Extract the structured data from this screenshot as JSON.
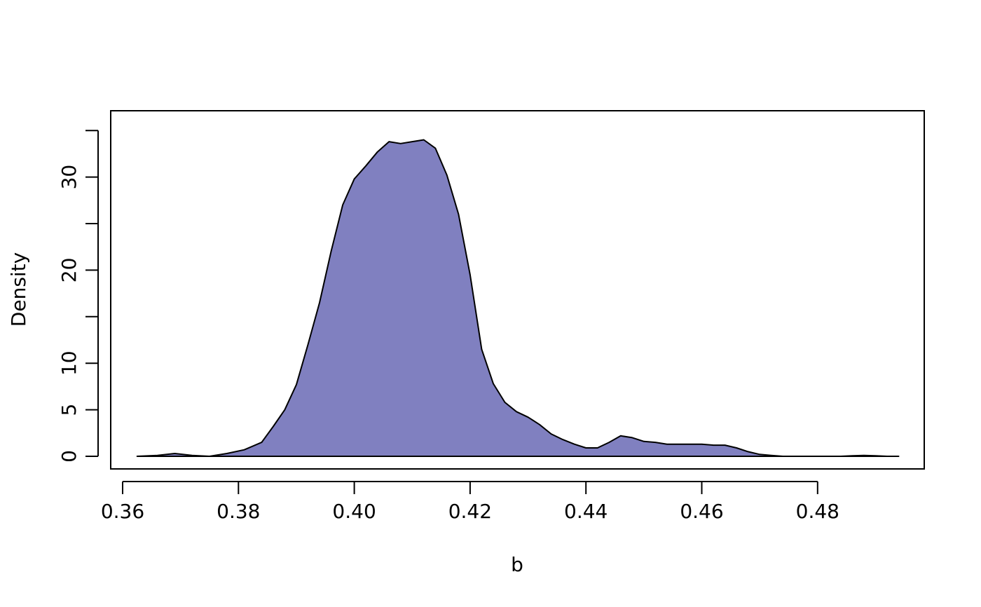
{
  "chart_data": {
    "type": "area",
    "title": "",
    "xlabel": "b",
    "ylabel": "Density",
    "xlim": [
      0.36,
      0.495
    ],
    "ylim": [
      0,
      35
    ],
    "x_ticks": [
      "0.36",
      "0.38",
      "0.40",
      "0.42",
      "0.44",
      "0.46",
      "0.48"
    ],
    "y_ticks": [
      "0",
      "5",
      "10",
      "15",
      "20",
      "25",
      "30",
      "35"
    ],
    "y_tick_labels": [
      "0",
      "5",
      "10",
      "",
      "20",
      "",
      "30",
      ""
    ],
    "fill_color": "#8080c0",
    "line_color": "#000000",
    "grid": false,
    "legend": "none",
    "series": [
      {
        "x": [
          0.3625,
          0.366,
          0.369,
          0.372,
          0.375,
          0.378,
          0.381,
          0.384,
          0.386,
          0.388,
          0.39,
          0.392,
          0.394,
          0.396,
          0.398,
          0.4,
          0.402,
          0.404,
          0.406,
          0.408,
          0.41,
          0.412,
          0.414,
          0.416,
          0.418,
          0.42,
          0.422,
          0.424,
          0.426,
          0.428,
          0.43,
          0.432,
          0.434,
          0.436,
          0.438,
          0.44,
          0.442,
          0.444,
          0.446,
          0.448,
          0.45,
          0.452,
          0.454,
          0.456,
          0.458,
          0.46,
          0.462,
          0.464,
          0.466,
          0.468,
          0.47,
          0.472,
          0.474,
          0.476,
          0.478,
          0.48,
          0.482,
          0.484,
          0.486,
          0.488,
          0.49,
          0.492,
          0.494
        ],
        "y": [
          0.0,
          0.1,
          0.3,
          0.1,
          0.0,
          0.3,
          0.7,
          1.5,
          3.2,
          5.0,
          7.7,
          12.0,
          16.5,
          22.0,
          27.0,
          29.8,
          31.2,
          32.7,
          33.8,
          33.6,
          33.8,
          34.0,
          33.1,
          30.2,
          26.0,
          19.5,
          11.5,
          7.8,
          5.8,
          4.8,
          4.2,
          3.4,
          2.4,
          1.8,
          1.3,
          0.9,
          0.9,
          1.5,
          2.2,
          2.0,
          1.6,
          1.5,
          1.3,
          1.3,
          1.3,
          1.3,
          1.2,
          1.2,
          0.9,
          0.5,
          0.2,
          0.1,
          0.0,
          0.0,
          0.0,
          0.0,
          0.0,
          0.0,
          0.05,
          0.1,
          0.05,
          0.0,
          0.0
        ]
      }
    ]
  }
}
